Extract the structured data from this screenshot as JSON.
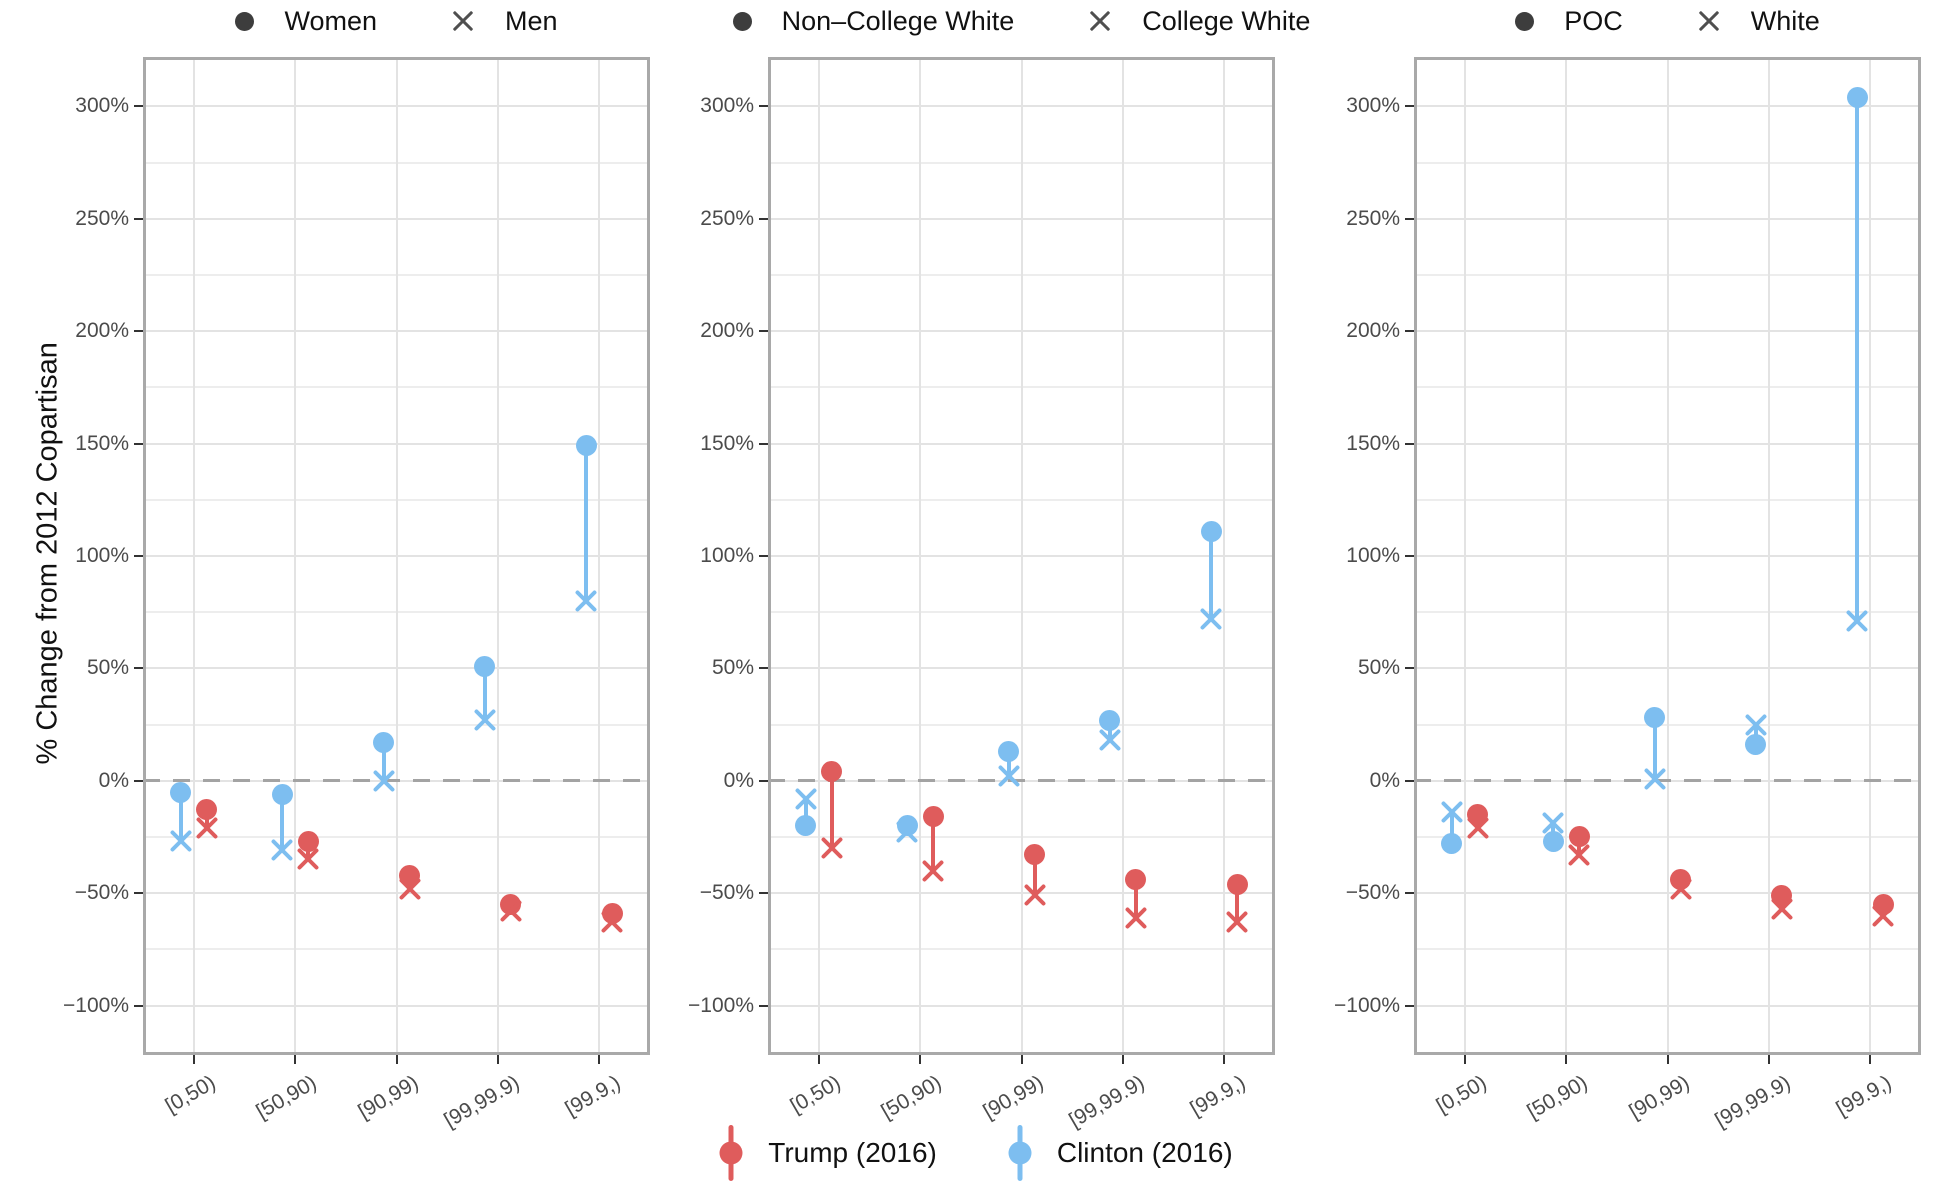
{
  "figure": {
    "y_axis_title": "% Change from 2012 Copartisan"
  },
  "chart_data": {
    "type": "scatter",
    "subtype": "dodged dumbbell (dot = group 1, x = group 2, vertical connector), faceted into 3 panels",
    "ylabel": "% Change from 2012 Copartisan",
    "ylim": [
      -122,
      322
    ],
    "grid": "on",
    "zero_reference_line": 0,
    "y_major_ticks": [
      {
        "v": 300,
        "label": "300%"
      },
      {
        "v": 250,
        "label": "250%"
      },
      {
        "v": 200,
        "label": "200%"
      },
      {
        "v": 150,
        "label": "150%"
      },
      {
        "v": 100,
        "label": "100%"
      },
      {
        "v": 50,
        "label": "50%"
      },
      {
        "v": 0,
        "label": "0%"
      },
      {
        "v": -50,
        "label": "−50%"
      },
      {
        "v": -100,
        "label": "−100%"
      }
    ],
    "y_minor_ticks": [
      275,
      225,
      175,
      125,
      75,
      25,
      -25,
      -75
    ],
    "categories": [
      "[0,50)",
      "[50,90)",
      "[90,99)",
      "[99,99.9)",
      "[99.9,)"
    ],
    "panels": [
      {
        "id": "gender",
        "marker_legend": {
          "dot_label": "Women",
          "x_label": "Men"
        },
        "series": [
          {
            "name": "Trump (2016)",
            "color": "#df5c5c",
            "dot_values": [
              -13,
              -27,
              -42,
              -55,
              -59
            ],
            "x_values": [
              -21,
              -35,
              -48,
              -58,
              -63
            ]
          },
          {
            "name": "Clinton (2016)",
            "color": "#7dbef0",
            "dot_values": [
              -5,
              -6,
              17,
              51,
              149
            ],
            "x_values": [
              -27,
              -31,
              0,
              27,
              80
            ]
          }
        ]
      },
      {
        "id": "education",
        "marker_legend": {
          "dot_label": "Non–College White",
          "x_label": "College White"
        },
        "series": [
          {
            "name": "Trump (2016)",
            "color": "#df5c5c",
            "dot_values": [
              4,
              -16,
              -33,
              -44,
              -46
            ],
            "x_values": [
              -30,
              -40,
              -51,
              -61,
              -63
            ]
          },
          {
            "name": "Clinton (2016)",
            "color": "#7dbef0",
            "dot_values": [
              -20,
              -20,
              13,
              27,
              111
            ],
            "x_values": [
              -8,
              -23,
              2,
              18,
              72
            ]
          }
        ]
      },
      {
        "id": "race",
        "marker_legend": {
          "dot_label": "POC",
          "x_label": "White"
        },
        "series": [
          {
            "name": "Trump (2016)",
            "color": "#df5c5c",
            "dot_values": [
              -15,
              -25,
              -44,
              -51,
              -55
            ],
            "x_values": [
              -21,
              -33,
              -48,
              -57,
              -60
            ]
          },
          {
            "name": "Clinton (2016)",
            "color": "#7dbef0",
            "dot_values": [
              -28,
              -27,
              28,
              16,
              304
            ],
            "x_values": [
              -14,
              -19,
              1,
              25,
              71
            ]
          }
        ]
      }
    ],
    "party_legend": [
      {
        "label": "Trump (2016)",
        "color": "#df5c5c"
      },
      {
        "label": "Clinton (2016)",
        "color": "#7dbef0"
      }
    ]
  }
}
